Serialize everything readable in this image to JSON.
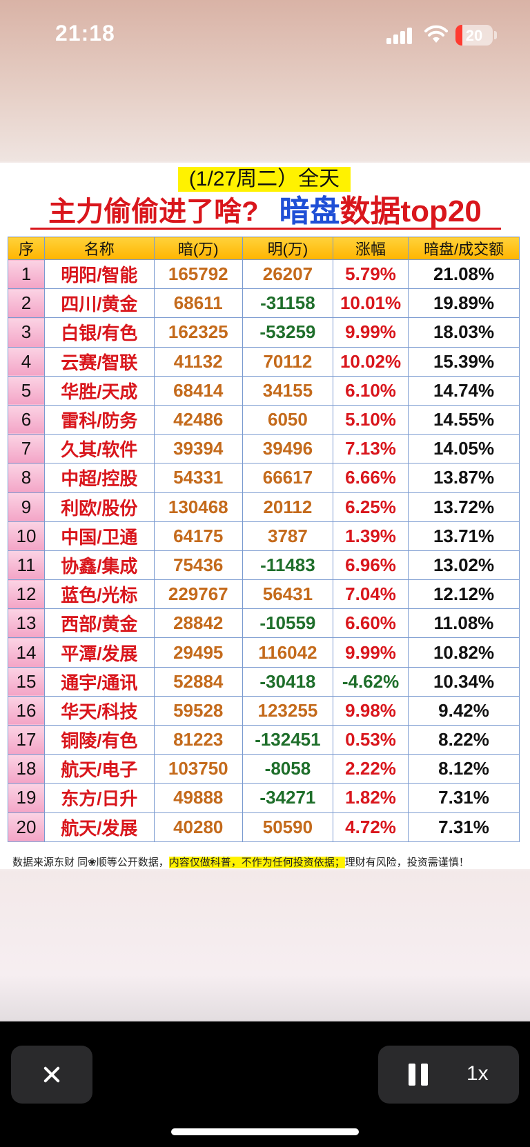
{
  "status_bar": {
    "time": "21:18",
    "battery": "20",
    "battery_color": "#ff3b30"
  },
  "header": {
    "date_title": "(1/27周二）全天",
    "headline_red": "主力偷偷进了啥?",
    "headline_blue": "暗盘",
    "headline_red2": "数据top20"
  },
  "table": {
    "columns": [
      "序",
      "名称",
      "暗(万)",
      "明(万)",
      "涨幅",
      "暗盘/成交额"
    ],
    "rows": [
      {
        "idx": "1",
        "name": "明阳/智能",
        "dark": "165792",
        "light": "26207",
        "chg": "5.79%",
        "ratio": "21.08%"
      },
      {
        "idx": "2",
        "name": "四川/黄金",
        "dark": "68611",
        "light": "-31158",
        "chg": "10.01%",
        "ratio": "19.89%"
      },
      {
        "idx": "3",
        "name": "白银/有色",
        "dark": "162325",
        "light": "-53259",
        "chg": "9.99%",
        "ratio": "18.03%"
      },
      {
        "idx": "4",
        "name": "云赛/智联",
        "dark": "41132",
        "light": "70112",
        "chg": "10.02%",
        "ratio": "15.39%"
      },
      {
        "idx": "5",
        "name": "华胜/天成",
        "dark": "68414",
        "light": "34155",
        "chg": "6.10%",
        "ratio": "14.74%"
      },
      {
        "idx": "6",
        "name": "雷科/防务",
        "dark": "42486",
        "light": "6050",
        "chg": "5.10%",
        "ratio": "14.55%"
      },
      {
        "idx": "7",
        "name": "久其/软件",
        "dark": "39394",
        "light": "39496",
        "chg": "7.13%",
        "ratio": "14.05%"
      },
      {
        "idx": "8",
        "name": "中超/控股",
        "dark": "54331",
        "light": "66617",
        "chg": "6.66%",
        "ratio": "13.87%"
      },
      {
        "idx": "9",
        "name": "利欧/股份",
        "dark": "130468",
        "light": "20112",
        "chg": "6.25%",
        "ratio": "13.72%"
      },
      {
        "idx": "10",
        "name": "中国/卫通",
        "dark": "64175",
        "light": "3787",
        "chg": "1.39%",
        "ratio": "13.71%"
      },
      {
        "idx": "11",
        "name": "协鑫/集成",
        "dark": "75436",
        "light": "-11483",
        "chg": "6.96%",
        "ratio": "13.02%"
      },
      {
        "idx": "12",
        "name": "蓝色/光标",
        "dark": "229767",
        "light": "56431",
        "chg": "7.04%",
        "ratio": "12.12%"
      },
      {
        "idx": "13",
        "name": "西部/黄金",
        "dark": "28842",
        "light": "-10559",
        "chg": "6.60%",
        "ratio": "11.08%"
      },
      {
        "idx": "14",
        "name": "平潭/发展",
        "dark": "29495",
        "light": "116042",
        "chg": "9.99%",
        "ratio": "10.82%"
      },
      {
        "idx": "15",
        "name": "通宇/通讯",
        "dark": "52884",
        "light": "-30418",
        "chg": "-4.62%",
        "ratio": "10.34%"
      },
      {
        "idx": "16",
        "name": "华天/科技",
        "dark": "59528",
        "light": "123255",
        "chg": "9.98%",
        "ratio": "9.42%"
      },
      {
        "idx": "17",
        "name": "铜陵/有色",
        "dark": "81223",
        "light": "-132451",
        "chg": "0.53%",
        "ratio": "8.22%"
      },
      {
        "idx": "18",
        "name": "航天/电子",
        "dark": "103750",
        "light": "-8058",
        "chg": "2.22%",
        "ratio": "8.12%"
      },
      {
        "idx": "19",
        "name": "东方/日升",
        "dark": "49888",
        "light": "-34271",
        "chg": "1.82%",
        "ratio": "7.31%"
      },
      {
        "idx": "20",
        "name": "航天/发展",
        "dark": "40280",
        "light": "50590",
        "chg": "4.72%",
        "ratio": "7.31%"
      }
    ]
  },
  "footnote": {
    "part1": "数据来源东财 同❀顺等公开数据，",
    "highlight": "内容仅做科普，不作为任何投资依据；",
    "part2": "理财有风险，投资需谨慎！"
  },
  "controls": {
    "speed": "1x"
  }
}
